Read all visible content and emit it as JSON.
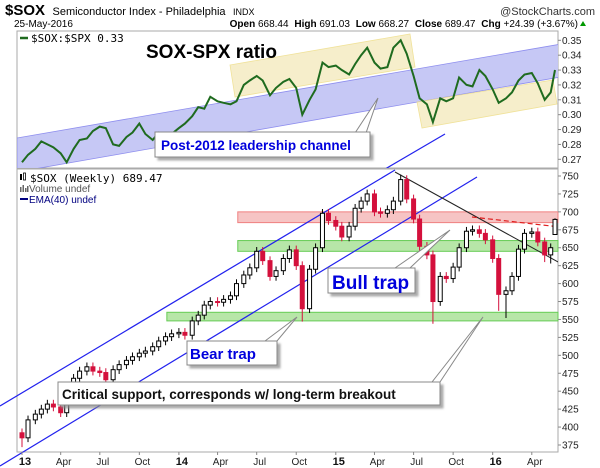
{
  "header": {
    "symbol": "$SOX",
    "name": "Semiconductor Index - Philadelphia",
    "exchange": "INDX",
    "brand": "@StockCharts.com",
    "date": "25-May-2016",
    "open_label": "Open",
    "open": "668.44",
    "high_label": "High",
    "high": "691.03",
    "low_label": "Low",
    "low": "668.27",
    "close_label": "Close",
    "close": "689.47",
    "chg_label": "Chg",
    "chg": "+24.39 (+3.67%)",
    "chg_direction": "up",
    "up_color": "#009900"
  },
  "ratio_panel": {
    "legend": "$SOX:$SPX 0.33",
    "title": "SOX-SPX ratio",
    "callout": "Post-2012 leadership channel"
  },
  "price_panel": {
    "legend": "$SOX (Weekly) 689.47",
    "volume_legend": "Volume undef",
    "ema_legend": "EMA(40) undef",
    "callouts": {
      "bull_trap": "Bull trap",
      "bear_trap": "Bear trap",
      "critical_support": "Critical support, corresponds w/ long-term breakout"
    }
  },
  "colors": {
    "ratio_line": "#1f6b1f",
    "channel_fill": "#c4c6f5",
    "yellow_box": "#f5ecc2",
    "resistance_zone": "#f6c4c4",
    "support_zone": "#b7e6a8",
    "down_candle": "#d4103c",
    "trendline": "#2222ee",
    "callout_text": "#0000dd"
  },
  "chart_data": [
    {
      "type": "line",
      "series": [
        {
          "name": "$SOX:$SPX",
          "values_key": "ratio"
        }
      ],
      "ylim": [
        0.265,
        0.356
      ],
      "yticks": [
        "0.35",
        "0.34",
        "0.33",
        "0.32",
        "0.31",
        "0.30",
        "0.29",
        "0.28",
        "0.27"
      ],
      "grid": false
    },
    {
      "type": "candlestick",
      "frequency": "weekly",
      "ylim": [
        362,
        755
      ],
      "yticks": [
        "750",
        "725",
        "700",
        "675",
        "650",
        "625",
        "600",
        "575",
        "550",
        "525",
        "500",
        "475",
        "450",
        "425",
        "400",
        "375"
      ],
      "xticks": [
        {
          "label": "13",
          "date": "2013-01-01",
          "bold": true
        },
        {
          "label": "Apr",
          "date": "2013-04-01"
        },
        {
          "label": "Jul",
          "date": "2013-07-01"
        },
        {
          "label": "Oct",
          "date": "2013-10-01"
        },
        {
          "label": "14",
          "date": "2014-01-01",
          "bold": true
        },
        {
          "label": "Apr",
          "date": "2014-04-01"
        },
        {
          "label": "Jul",
          "date": "2014-07-01"
        },
        {
          "label": "Oct",
          "date": "2014-10-01"
        },
        {
          "label": "15",
          "date": "2015-01-01",
          "bold": true
        },
        {
          "label": "Apr",
          "date": "2015-04-01"
        },
        {
          "label": "Jul",
          "date": "2015-07-01"
        },
        {
          "label": "Oct",
          "date": "2015-10-01"
        },
        {
          "label": "16",
          "date": "2016-01-01",
          "bold": true
        },
        {
          "label": "Apr",
          "date": "2016-04-01"
        }
      ],
      "zones": [
        {
          "name": "resistance",
          "low": 685,
          "high": 700,
          "from": "2014-05-18",
          "color": "#f6c4c4",
          "edge": "#f08080"
        },
        {
          "name": "upper-support",
          "low": 645,
          "high": 660,
          "from": "2014-05-18",
          "color": "#b7e6a8",
          "edge": "#66cc55"
        },
        {
          "name": "critical-support",
          "low": 548,
          "high": 560,
          "from": "2013-12-04",
          "color": "#b7e6a8",
          "edge": "#66cc55"
        }
      ],
      "grid": false
    }
  ],
  "series": {
    "dates": [
      "2013-01-01",
      "2013-01-15",
      "2013-02-01",
      "2013-02-15",
      "2013-03-01",
      "2013-03-15",
      "2013-04-01",
      "2013-04-15",
      "2013-05-01",
      "2013-05-15",
      "2013-06-01",
      "2013-06-15",
      "2013-07-01",
      "2013-07-15",
      "2013-08-01",
      "2013-08-15",
      "2013-09-01",
      "2013-09-15",
      "2013-10-01",
      "2013-10-15",
      "2013-11-01",
      "2013-11-15",
      "2013-12-01",
      "2013-12-15",
      "2014-01-01",
      "2014-01-15",
      "2014-02-01",
      "2014-02-15",
      "2014-03-01",
      "2014-03-15",
      "2014-04-01",
      "2014-04-15",
      "2014-05-01",
      "2014-05-15",
      "2014-06-01",
      "2014-06-15",
      "2014-07-01",
      "2014-07-15",
      "2014-08-01",
      "2014-08-15",
      "2014-09-01",
      "2014-09-15",
      "2014-10-01",
      "2014-10-15",
      "2014-11-01",
      "2014-11-15",
      "2014-12-01",
      "2014-12-15",
      "2015-01-01",
      "2015-01-15",
      "2015-02-01",
      "2015-02-15",
      "2015-03-01",
      "2015-03-15",
      "2015-04-01",
      "2015-04-15",
      "2015-05-01",
      "2015-05-15",
      "2015-06-01",
      "2015-06-15",
      "2015-07-01",
      "2015-07-15",
      "2015-08-01",
      "2015-08-15",
      "2015-09-01",
      "2015-09-15",
      "2015-10-01",
      "2015-10-15",
      "2015-11-01",
      "2015-11-15",
      "2015-12-01",
      "2015-12-15",
      "2016-01-01",
      "2016-01-15",
      "2016-02-01",
      "2016-02-15",
      "2016-03-01",
      "2016-03-15",
      "2016-04-01",
      "2016-04-15",
      "2016-05-01",
      "2016-05-15",
      "2016-05-25"
    ],
    "open": [
      392,
      385,
      410,
      418,
      425,
      432,
      428,
      420,
      440,
      468,
      478,
      484,
      478,
      476,
      466,
      480,
      487,
      493,
      498,
      503,
      506,
      512,
      520,
      526,
      530,
      532,
      528,
      548,
      556,
      570,
      575,
      574,
      578,
      583,
      600,
      612,
      622,
      645,
      632,
      610,
      618,
      635,
      647,
      625,
      565,
      620,
      650,
      698,
      688,
      680,
      665,
      680,
      705,
      715,
      725,
      700,
      698,
      703,
      715,
      745,
      718,
      690,
      652,
      640,
      575,
      610,
      607,
      623,
      650,
      673,
      675,
      670,
      661,
      635,
      585,
      590,
      610,
      648,
      670,
      672,
      658,
      640,
      668.44
    ],
    "high": [
      398,
      416,
      424,
      431,
      438,
      438,
      434,
      446,
      474,
      484,
      490,
      490,
      484,
      482,
      486,
      493,
      499,
      504,
      509,
      512,
      518,
      526,
      532,
      536,
      538,
      538,
      554,
      562,
      576,
      581,
      581,
      584,
      589,
      606,
      618,
      628,
      651,
      651,
      638,
      624,
      641,
      653,
      653,
      631,
      626,
      656,
      704,
      704,
      694,
      686,
      686,
      711,
      721,
      731,
      731,
      706,
      709,
      721,
      752,
      751,
      724,
      696,
      658,
      646,
      616,
      616,
      629,
      656,
      679,
      681,
      681,
      676,
      667,
      641,
      596,
      616,
      654,
      676,
      678,
      678,
      664,
      656,
      691.03
    ],
    "low": [
      372,
      379,
      404,
      412,
      419,
      422,
      414,
      414,
      434,
      462,
      472,
      472,
      470,
      460,
      460,
      474,
      481,
      487,
      492,
      497,
      500,
      506,
      514,
      520,
      524,
      522,
      522,
      542,
      550,
      564,
      568,
      568,
      572,
      577,
      594,
      606,
      616,
      626,
      604,
      604,
      612,
      629,
      619,
      547,
      559,
      614,
      644,
      682,
      674,
      659,
      659,
      674,
      699,
      709,
      694,
      692,
      692,
      697,
      709,
      712,
      684,
      646,
      634,
      544,
      569,
      601,
      601,
      617,
      644,
      667,
      664,
      655,
      629,
      562,
      552,
      584,
      604,
      642,
      664,
      652,
      630,
      628,
      668.27
    ],
    "close": [
      385,
      410,
      418,
      425,
      432,
      428,
      420,
      440,
      468,
      478,
      484,
      478,
      476,
      466,
      480,
      487,
      493,
      498,
      503,
      506,
      512,
      520,
      526,
      530,
      532,
      528,
      548,
      556,
      570,
      575,
      574,
      578,
      583,
      600,
      612,
      622,
      645,
      632,
      610,
      618,
      635,
      647,
      625,
      565,
      620,
      650,
      698,
      688,
      680,
      665,
      680,
      705,
      715,
      725,
      700,
      698,
      703,
      715,
      745,
      718,
      690,
      652,
      640,
      575,
      610,
      607,
      623,
      650,
      673,
      675,
      670,
      661,
      635,
      585,
      590,
      610,
      648,
      670,
      672,
      658,
      640,
      650,
      689.47
    ],
    "ratio": [
      0.268,
      0.273,
      0.277,
      0.282,
      0.28,
      0.278,
      0.274,
      0.268,
      0.277,
      0.283,
      0.284,
      0.289,
      0.292,
      0.291,
      0.28,
      0.279,
      0.285,
      0.288,
      0.294,
      0.287,
      0.283,
      0.288,
      0.287,
      0.287,
      0.291,
      0.294,
      0.299,
      0.305,
      0.304,
      0.312,
      0.309,
      0.308,
      0.307,
      0.309,
      0.32,
      0.323,
      0.326,
      0.323,
      0.313,
      0.318,
      0.322,
      0.324,
      0.318,
      0.3,
      0.31,
      0.317,
      0.335,
      0.332,
      0.333,
      0.33,
      0.327,
      0.334,
      0.34,
      0.345,
      0.335,
      0.331,
      0.332,
      0.345,
      0.35,
      0.341,
      0.326,
      0.311,
      0.307,
      0.295,
      0.311,
      0.309,
      0.311,
      0.325,
      0.32,
      0.319,
      0.33,
      0.326,
      0.317,
      0.308,
      0.311,
      0.315,
      0.323,
      0.327,
      0.328,
      0.321,
      0.31,
      0.315,
      0.33
    ]
  }
}
